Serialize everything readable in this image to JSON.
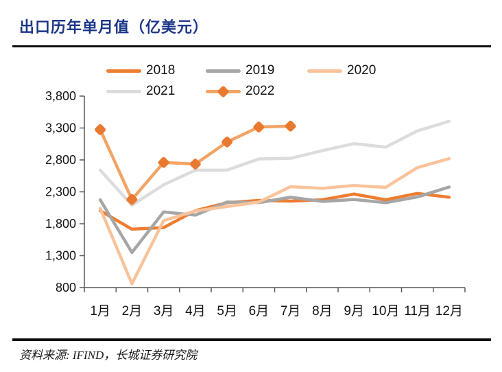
{
  "header": {
    "title": "出口历年单月值（亿美元）"
  },
  "footer": {
    "source": "资料来源: IFIND，长城证券研究院"
  },
  "colors": {
    "title_navy": "#1c3687",
    "rule_black": "#0d0d0d",
    "axis_gray": "#595959",
    "label_black": "#131313",
    "s2018": "#ED7D31",
    "s2019": "#A6A6A6",
    "s2020": "#F8C39B",
    "s2021": "#DCDCDC",
    "s2022_line": "#F2A465",
    "s2022_marker": "#E9792F"
  },
  "chart_data": {
    "type": "line",
    "title": "出口历年单月值（亿美元）",
    "xlabel": "",
    "ylabel": "亿美元",
    "categories": [
      "1月",
      "2月",
      "3月",
      "4月",
      "5月",
      "6月",
      "7月",
      "8月",
      "9月",
      "10月",
      "11月",
      "12月"
    ],
    "series": [
      {
        "name": "2018",
        "color": "#ED7D31",
        "values": [
          2005,
          1715,
          1740,
          2005,
          2130,
          2165,
          2155,
          2175,
          2265,
          2175,
          2275,
          2215
        ]
      },
      {
        "name": "2019",
        "color": "#A6A6A6",
        "values": [
          2175,
          1350,
          1985,
          1935,
          2140,
          2130,
          2215,
          2150,
          2180,
          2130,
          2220,
          2375
        ]
      },
      {
        "name": "2020",
        "color": "#F8C39B",
        "values": [
          2040,
          860,
          1850,
          2000,
          2070,
          2140,
          2380,
          2355,
          2400,
          2370,
          2680,
          2820
        ]
      },
      {
        "name": "2021",
        "color": "#DCDCDC",
        "values": [
          2640,
          2090,
          2410,
          2640,
          2640,
          2815,
          2825,
          2945,
          3055,
          3000,
          3255,
          3405
        ]
      },
      {
        "name": "2022",
        "color": "#F2A465",
        "marker": "diamond",
        "marker_color": "#E9792F",
        "values": [
          3275,
          2180,
          2760,
          2735,
          3080,
          3315,
          3330,
          null,
          null,
          null,
          null,
          null
        ]
      }
    ],
    "ylim": [
      800,
      3800
    ],
    "ytick_step": 500,
    "ytick_labels": [
      "800",
      "1,300",
      "1,800",
      "2,300",
      "2,800",
      "3,300",
      "3,800"
    ],
    "legend_position": "top",
    "grid": false
  }
}
